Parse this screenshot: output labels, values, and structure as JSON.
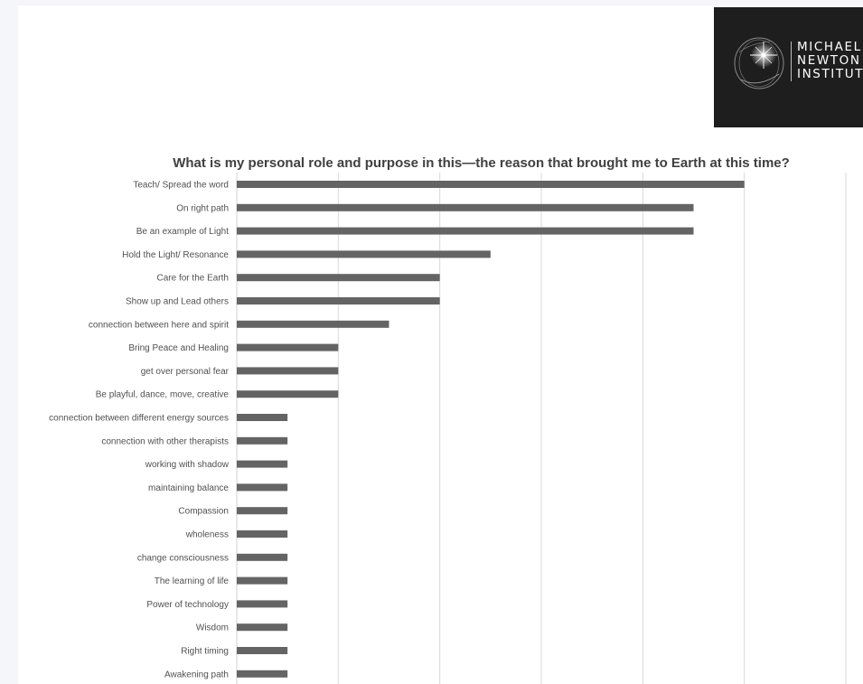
{
  "logo": {
    "lines": [
      "MICHAEL",
      "NEWTON",
      "INSTITUTE"
    ]
  },
  "chart_data": {
    "type": "bar",
    "orientation": "horizontal",
    "title": "What is my personal role and purpose in this—the reason that brought me to Earth at this time?",
    "categories": [
      "Teach/ Spread the word",
      "On right path",
      "Be an example of Light",
      "Hold the Light/ Resonance",
      "Care for the Earth",
      "Show up and Lead others",
      "connection between here and spirit",
      "Bring Peace and Healing",
      "get over personal fear",
      "Be playful, dance, move, creative",
      "connection between different energy sources",
      "connection with other therapists",
      "working with shadow",
      "maintaining balance",
      "Compassion",
      "wholeness",
      "change consciousness",
      "The learning of life",
      "Power of technology",
      "Wisdom",
      "Right timing",
      "Awakening path"
    ],
    "values": [
      10,
      9,
      9,
      5,
      4,
      4,
      3,
      2,
      2,
      2,
      1,
      1,
      1,
      1,
      1,
      1,
      1,
      1,
      1,
      1,
      1,
      1
    ],
    "xlim": [
      0,
      12
    ],
    "grid": true,
    "bar_color": "#646464",
    "grid_color": "#d9d9d9"
  }
}
